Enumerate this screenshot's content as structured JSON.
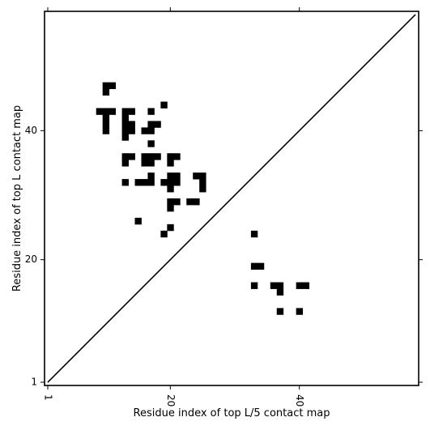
{
  "chart_data": {
    "type": "heatmap",
    "title": "",
    "xlabel": "Residue index of top L/5 contact map",
    "ylabel": "Residue index of top L contact map",
    "xlim": [
      0.5,
      58.5
    ],
    "ylim": [
      0.5,
      58.5
    ],
    "x_ticks": [
      1,
      20,
      40
    ],
    "y_ticks": [
      1,
      20,
      40
    ],
    "x_tick_labels": [
      "1",
      "20",
      "40"
    ],
    "y_tick_labels": [
      "1",
      "20",
      "40"
    ],
    "x_tick_rotation": "vertical",
    "diagonal": {
      "from": [
        1,
        1
      ],
      "to": [
        58,
        58
      ]
    },
    "cell_color": "#000000",
    "grid": false,
    "legend": "none",
    "series": [
      {
        "values": [
          [
            10,
            47
          ],
          [
            11,
            47
          ],
          [
            10,
            46
          ],
          [
            9,
            43
          ],
          [
            10,
            43
          ],
          [
            11,
            43
          ],
          [
            13,
            43
          ],
          [
            14,
            43
          ],
          [
            17,
            43
          ],
          [
            19,
            44
          ],
          [
            10,
            42
          ],
          [
            13,
            42
          ],
          [
            10,
            40
          ],
          [
            10,
            41
          ],
          [
            13,
            41
          ],
          [
            14,
            41
          ],
          [
            13,
            40
          ],
          [
            14,
            40
          ],
          [
            13,
            39
          ],
          [
            16,
            40
          ],
          [
            17,
            40
          ],
          [
            17,
            41
          ],
          [
            18,
            41
          ],
          [
            17,
            38
          ],
          [
            13,
            36
          ],
          [
            14,
            36
          ],
          [
            13,
            35
          ],
          [
            16,
            36
          ],
          [
            17,
            36
          ],
          [
            18,
            36
          ],
          [
            16,
            35
          ],
          [
            17,
            35
          ],
          [
            20,
            36
          ],
          [
            21,
            36
          ],
          [
            20,
            35
          ],
          [
            17,
            33
          ],
          [
            20,
            33
          ],
          [
            21,
            33
          ],
          [
            24,
            33
          ],
          [
            25,
            33
          ],
          [
            13,
            32
          ],
          [
            15,
            32
          ],
          [
            16,
            32
          ],
          [
            17,
            32
          ],
          [
            19,
            32
          ],
          [
            20,
            32
          ],
          [
            21,
            32
          ],
          [
            25,
            32
          ],
          [
            20,
            31
          ],
          [
            25,
            31
          ],
          [
            20,
            29
          ],
          [
            21,
            29
          ],
          [
            23,
            29
          ],
          [
            24,
            29
          ],
          [
            20,
            28
          ],
          [
            15,
            26
          ],
          [
            20,
            25
          ],
          [
            19,
            24
          ],
          [
            33,
            24
          ],
          [
            33,
            19
          ],
          [
            34,
            19
          ],
          [
            33,
            16
          ],
          [
            36,
            16
          ],
          [
            37,
            16
          ],
          [
            40,
            16
          ],
          [
            41,
            16
          ],
          [
            37,
            15
          ],
          [
            37,
            12
          ],
          [
            40,
            12
          ]
        ]
      }
    ]
  }
}
